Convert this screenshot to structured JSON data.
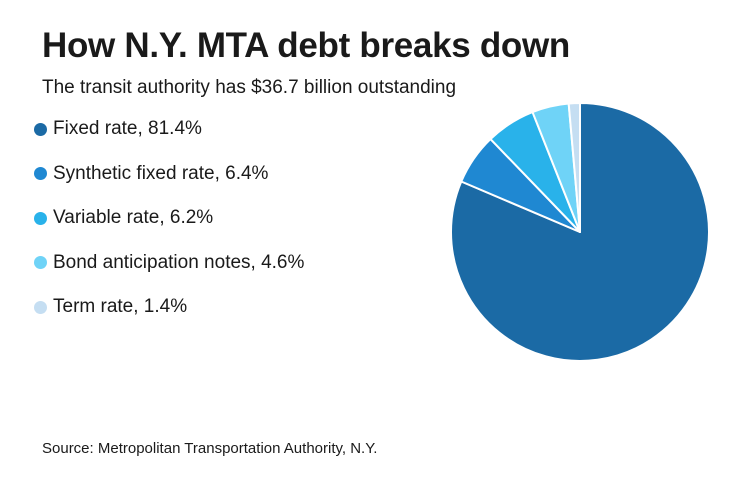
{
  "chart_data": {
    "type": "pie",
    "title": "How N.Y. MTA debt breaks down",
    "subtitle": "The transit authority has $36.7 billion outstanding",
    "slices": [
      {
        "label": "Fixed rate, 81.4%",
        "category": "Fixed rate",
        "value": 81.4,
        "color": "#1b6aa5"
      },
      {
        "label": "Synthetic fixed rate, 6.4%",
        "category": "Synthetic fixed rate",
        "value": 6.4,
        "color": "#1f88d2"
      },
      {
        "label": "Variable rate, 6.2%",
        "category": "Variable rate",
        "value": 6.2,
        "color": "#29b2ea"
      },
      {
        "label": "Bond anticipation notes, 4.6%",
        "category": "Bond anticipation notes",
        "value": 4.6,
        "color": "#6fd3f7"
      },
      {
        "label": "Term rate, 1.4%",
        "category": "Term rate",
        "value": 1.4,
        "color": "#c5def2"
      }
    ],
    "start_angle_deg": 0,
    "direction": "clockwise",
    "legend_position": "left",
    "source": "Source: Metropolitan Transportation Authority, N.Y."
  }
}
